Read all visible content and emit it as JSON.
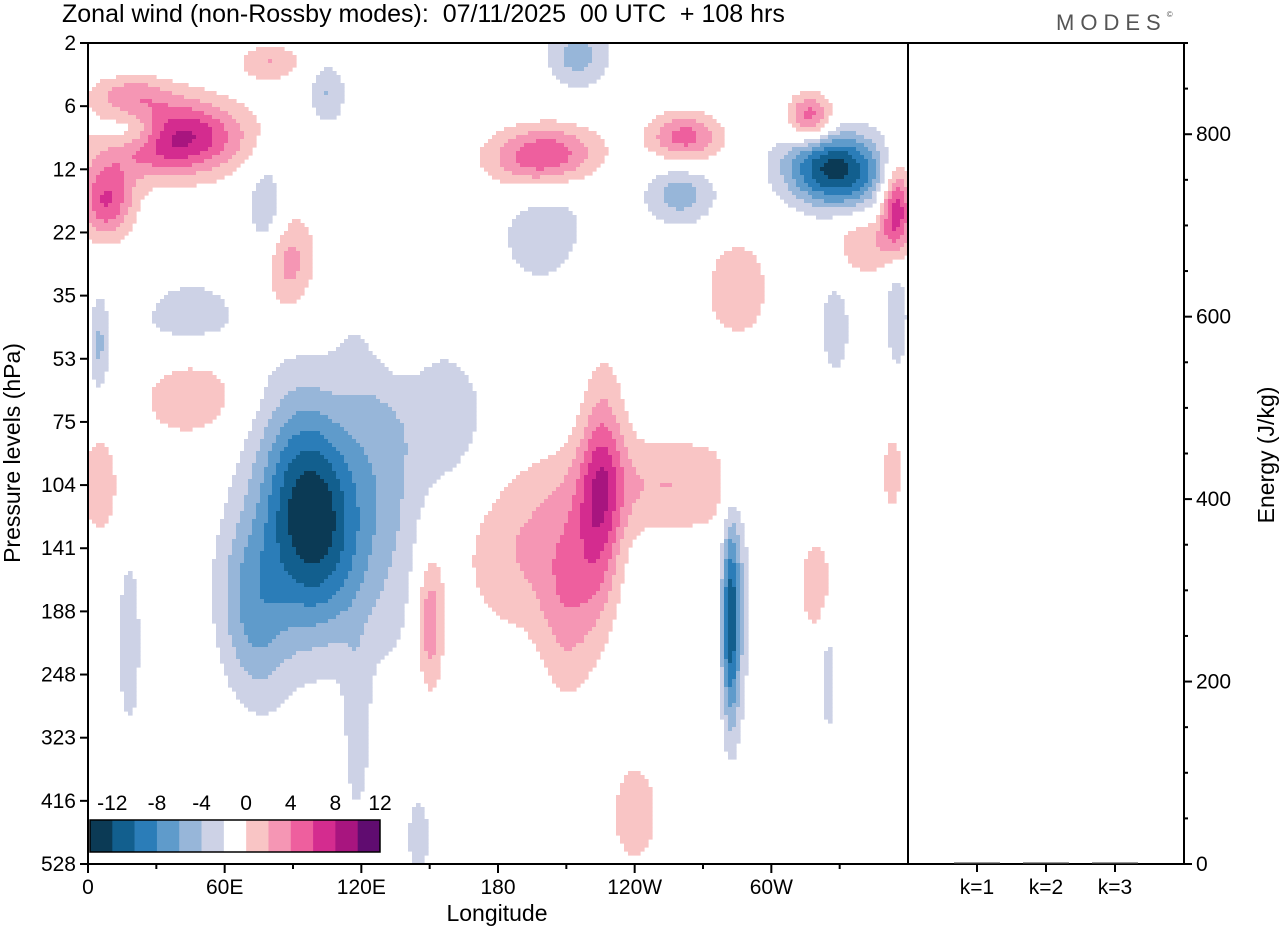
{
  "title": "Zonal wind (non-Rossby modes):  07/11/2025  00 UTC  + 108 hrs",
  "brand": "MODES",
  "brand_mark": "©",
  "chart_data": [
    {
      "type": "heatmap",
      "title": "Zonal wind (non-Rossby modes):  07/11/2025  00 UTC  + 108 hrs",
      "xlabel": "Longitude",
      "ylabel": "Pressure levels (hPa)",
      "x_tick_labels": [
        "0",
        "60E",
        "120E",
        "180",
        "120W",
        "60W"
      ],
      "x_tick_positions_deg": [
        0,
        60,
        120,
        180,
        240,
        300
      ],
      "xlim_deg": [
        0,
        360
      ],
      "y_tick_labels": [
        "2",
        "6",
        "12",
        "22",
        "35",
        "53",
        "75",
        "104",
        "141",
        "188",
        "248",
        "323",
        "416",
        "528"
      ],
      "colorbar": {
        "tick_labels": [
          "-12",
          "-8",
          "-4",
          "0",
          "4",
          "8",
          "12"
        ],
        "levels": [
          -14,
          -12,
          -10,
          -8,
          -6,
          -4,
          -2,
          2,
          4,
          6,
          8,
          10,
          12,
          14
        ],
        "colors": [
          "#0b3a55",
          "#125f8e",
          "#2b7db8",
          "#5f9bcb",
          "#97b6d9",
          "#cdd2e6",
          "#ffffff",
          "#f9c5c5",
          "#f596b4",
          "#ee5f9e",
          "#d42c8f",
          "#a8157f",
          "#600c70"
        ]
      },
      "features": [
        {
          "lon": 98,
          "level_index": 7.5,
          "value": -14,
          "lon_spread": 22,
          "level_spread": 1.8,
          "tilt": -0.05
        },
        {
          "lon": 130,
          "level_index": 6.5,
          "value": -4,
          "lon_spread": 18,
          "level_spread": 3.2,
          "tilt": -0.06
        },
        {
          "lon": 72,
          "level_index": 9,
          "value": -6,
          "lon_spread": 16,
          "level_spread": 1.5,
          "tilt": -0.05
        },
        {
          "lon": 282,
          "level_index": 9.2,
          "value": -10,
          "lon_spread": 4,
          "level_spread": 1.6,
          "tilt": 0
        },
        {
          "lon": 286,
          "level_index": 8.6,
          "value": -3,
          "lon_spread": 6,
          "level_spread": 2.2,
          "tilt": 0
        },
        {
          "lon": 18,
          "level_index": 9.5,
          "value": -4,
          "lon_spread": 5,
          "level_spread": 1.4,
          "tilt": 0
        },
        {
          "lon": 328,
          "level_index": 2,
          "value": -13,
          "lon_spread": 22,
          "level_spread": 0.6,
          "tilt": -0.035
        },
        {
          "lon": 260,
          "level_index": 2.4,
          "value": -5,
          "lon_spread": 16,
          "level_spread": 0.5,
          "tilt": 0
        },
        {
          "lon": 200,
          "level_index": 2.9,
          "value": -3,
          "lon_spread": 24,
          "level_spread": 1.2,
          "tilt": 0.03
        },
        {
          "lon": 215,
          "level_index": 0.2,
          "value": -5,
          "lon_spread": 14,
          "level_spread": 0.5,
          "tilt": 0
        },
        {
          "lon": 105,
          "level_index": 0.8,
          "value": -4,
          "lon_spread": 8,
          "level_spread": 0.5,
          "tilt": 0
        },
        {
          "lon": 20,
          "level_index": 1.4,
          "value": -5,
          "lon_spread": 14,
          "level_spread": 0.3,
          "tilt": 0
        },
        {
          "lon": 78,
          "level_index": 2.6,
          "value": -4,
          "lon_spread": 8,
          "level_spread": 0.8,
          "tilt": 0
        },
        {
          "lon": 45,
          "level_index": 4.5,
          "value": -3,
          "lon_spread": 30,
          "level_spread": 1,
          "tilt": 0
        },
        {
          "lon": 5,
          "level_index": 4.8,
          "value": -4,
          "lon_spread": 4,
          "level_spread": 0.8,
          "tilt": 0
        },
        {
          "lon": 355,
          "level_index": 4.3,
          "value": -4,
          "lon_spread": 5,
          "level_spread": 0.9,
          "tilt": 0
        },
        {
          "lon": 328,
          "level_index": 4.5,
          "value": -3,
          "lon_spread": 8,
          "level_spread": 1,
          "tilt": 0
        },
        {
          "lon": 325,
          "level_index": 9.8,
          "value": -3,
          "lon_spread": 4,
          "level_spread": 1.6,
          "tilt": 0
        },
        {
          "lon": 118,
          "level_index": 11,
          "value": -3,
          "lon_spread": 6,
          "level_spread": 1.5,
          "tilt": 0
        },
        {
          "lon": 145,
          "level_index": 12.6,
          "value": -3,
          "lon_spread": 6,
          "level_spread": 0.8,
          "tilt": 0
        },
        {
          "lon": 160,
          "level_index": 6,
          "value": -3,
          "lon_spread": 20,
          "level_spread": 1.4,
          "tilt": -0.05
        },
        {
          "lon": 38,
          "level_index": 1.5,
          "value": 11,
          "lon_spread": 30,
          "level_spread": 0.6,
          "tilt": 0.04
        },
        {
          "lon": 8,
          "level_index": 2.5,
          "value": 8,
          "lon_spread": 12,
          "level_spread": 0.6,
          "tilt": 0
        },
        {
          "lon": 200,
          "level_index": 1.8,
          "value": 9,
          "lon_spread": 24,
          "level_spread": 0.5,
          "tilt": 0.02
        },
        {
          "lon": 262,
          "level_index": 1.5,
          "value": 7,
          "lon_spread": 16,
          "level_spread": 0.4,
          "tilt": 0
        },
        {
          "lon": 317,
          "level_index": 1.2,
          "value": 8,
          "lon_spread": 10,
          "level_spread": 0.4,
          "tilt": 0
        },
        {
          "lon": 355,
          "level_index": 2.6,
          "value": 10,
          "lon_spread": 7,
          "level_spread": 0.7,
          "tilt": 0
        },
        {
          "lon": 340,
          "level_index": 3.2,
          "value": 4,
          "lon_spread": 14,
          "level_spread": 0.5,
          "tilt": 0
        },
        {
          "lon": 225,
          "level_index": 7.2,
          "value": 8,
          "lon_spread": 10,
          "level_spread": 1.8,
          "tilt": 0.12
        },
        {
          "lon": 255,
          "level_index": 7,
          "value": 4,
          "lon_spread": 40,
          "level_spread": 0.8,
          "tilt": 0
        },
        {
          "lon": 190,
          "level_index": 8,
          "value": 4,
          "lon_spread": 28,
          "level_spread": 1.4,
          "tilt": 0
        },
        {
          "lon": 150,
          "level_index": 9.2,
          "value": 6,
          "lon_spread": 6,
          "level_spread": 1.1,
          "tilt": 0
        },
        {
          "lon": 210,
          "level_index": 8.8,
          "value": 4,
          "lon_spread": 12,
          "level_spread": 1.6,
          "tilt": 0
        },
        {
          "lon": 285,
          "level_index": 3.9,
          "value": 4,
          "lon_spread": 14,
          "level_spread": 0.8,
          "tilt": 0
        },
        {
          "lon": 45,
          "level_index": 5.5,
          "value": 5,
          "lon_spread": 22,
          "level_spread": 0.7,
          "tilt": 0.05
        },
        {
          "lon": 88,
          "level_index": 3.5,
          "value": 5,
          "lon_spread": 12,
          "level_spread": 0.8,
          "tilt": 0.05
        },
        {
          "lon": 135,
          "level_index": 4.3,
          "value": 4,
          "lon_spread": 12,
          "level_spread": 1,
          "tilt": 0
        },
        {
          "lon": 18,
          "level_index": 0.8,
          "value": 4,
          "lon_spread": 18,
          "level_spread": 0.3,
          "tilt": 0
        },
        {
          "lon": 80,
          "level_index": 0.3,
          "value": 4,
          "lon_spread": 14,
          "level_spread": 0.3,
          "tilt": 0
        },
        {
          "lon": 240,
          "level_index": 12.2,
          "value": 4,
          "lon_spread": 10,
          "level_spread": 0.8,
          "tilt": 0
        },
        {
          "lon": 5,
          "level_index": 7,
          "value": 4,
          "lon_spread": 8,
          "level_spread": 0.8,
          "tilt": 0
        },
        {
          "lon": 353,
          "level_index": 6.8,
          "value": 4,
          "lon_spread": 4,
          "level_spread": 0.6,
          "tilt": 0
        },
        {
          "lon": 322,
          "level_index": 8.6,
          "value": 4,
          "lon_spread": 10,
          "level_spread": 0.8,
          "tilt": 0
        }
      ]
    },
    {
      "type": "bar",
      "categories": [
        "k=1",
        "k=2",
        "k=3"
      ],
      "values": [
        1,
        1,
        1
      ],
      "ylabel": "Energy (J/kg)",
      "ylim": [
        0,
        900
      ],
      "y_tick_labels": [
        "0",
        "200",
        "400",
        "600",
        "800"
      ]
    }
  ]
}
